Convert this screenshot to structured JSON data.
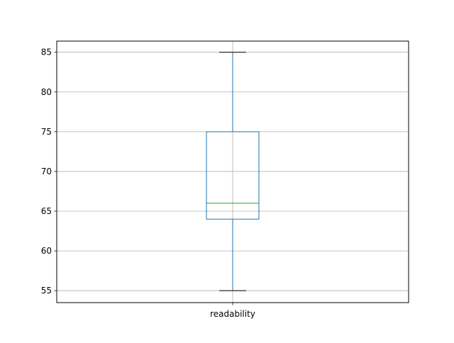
{
  "chart_data": {
    "type": "boxplot",
    "title": "",
    "xlabel": "",
    "ylabel": "",
    "categories": [
      "readability"
    ],
    "boxes": [
      {
        "name": "readability",
        "whisker_low": 55,
        "q1": 64,
        "median": 66,
        "q3": 75,
        "whisker_high": 85
      }
    ],
    "ylim": [
      53.5,
      86.4
    ],
    "yticks": [
      55,
      60,
      65,
      70,
      75,
      80,
      85
    ],
    "grid": true,
    "colors": {
      "box": "#1f77b4",
      "whisker": "#1f77b4",
      "median": "#2ca02c",
      "cap": "#000000",
      "grid": "#b0b0b0"
    }
  }
}
